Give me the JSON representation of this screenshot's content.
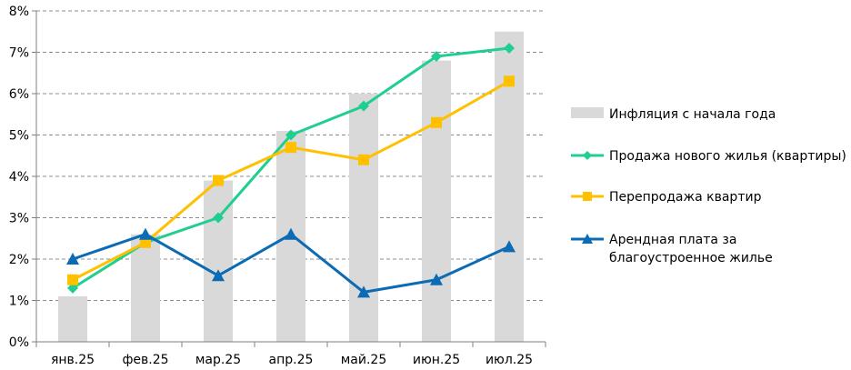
{
  "chart_data": {
    "type": "bar+line",
    "categories": [
      "янв.25",
      "фев.25",
      "мар.25",
      "апр.25",
      "май.25",
      "июн.25",
      "июл.25"
    ],
    "y_ticks": [
      "0%",
      "1%",
      "2%",
      "3%",
      "4%",
      "5%",
      "6%",
      "7%",
      "8%"
    ],
    "ylim": [
      0,
      8
    ],
    "grid": "horizontal dashed",
    "legend_position": "right",
    "bars": {
      "name": "Инфляция с начала года",
      "color": "#d9d9d9",
      "values": [
        1.1,
        2.6,
        3.9,
        5.1,
        6.0,
        6.8,
        7.5
      ]
    },
    "series": [
      {
        "name": "Продажа нового жилья (квартиры)",
        "color": "#1fcf8f",
        "marker": "diamond",
        "values": [
          1.3,
          2.4,
          3.0,
          5.0,
          5.7,
          6.9,
          7.1
        ]
      },
      {
        "name": "Перепродажа квартир",
        "color": "#ffc000",
        "marker": "square",
        "values": [
          1.5,
          2.4,
          3.9,
          4.7,
          4.4,
          5.3,
          6.3
        ]
      },
      {
        "name": "Арендная плата за благоустроенное жилье",
        "legend_lines": [
          "Арендная плата за",
          "благоустроенное жилье"
        ],
        "color": "#0b6bb5",
        "marker": "triangle",
        "values": [
          2.0,
          2.6,
          1.6,
          2.6,
          1.2,
          1.5,
          2.3
        ]
      }
    ]
  }
}
